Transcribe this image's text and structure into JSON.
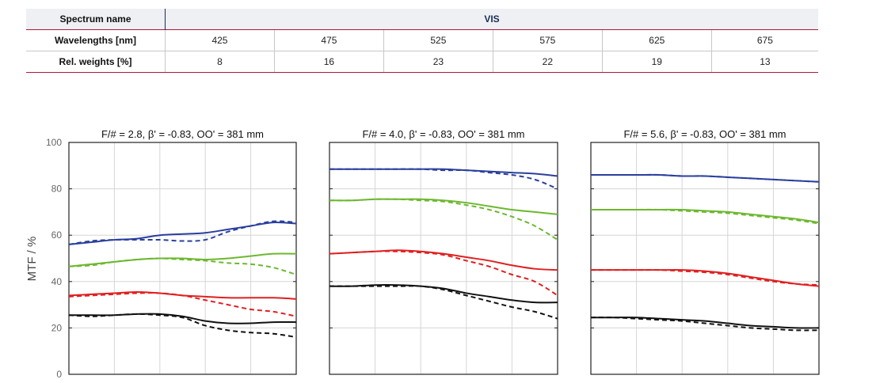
{
  "spectrum_table": {
    "name_label": "Spectrum name",
    "name_value": "VIS",
    "wavelengths_label": "Wavelengths [nm]",
    "wavelengths": [
      "425",
      "475",
      "525",
      "575",
      "625",
      "675"
    ],
    "weights_label": "Rel. weights [%]",
    "weights": [
      "8",
      "16",
      "23",
      "22",
      "19",
      "13"
    ]
  },
  "chart_data": [
    {
      "type": "line",
      "title": "F/# = 2.8, β' = -0.83, OO' = 381 mm",
      "ylabel": "MTF / %",
      "ylim": [
        0,
        100
      ],
      "yticks": [
        "0",
        "20",
        "40",
        "60",
        "80",
        "100"
      ],
      "xlim": [
        0,
        1
      ],
      "grid": true,
      "x": [
        0,
        0.1,
        0.2,
        0.3,
        0.4,
        0.5,
        0.6,
        0.7,
        0.8,
        0.9,
        1
      ],
      "series": [
        {
          "color": "#2a3f9d",
          "dash": false,
          "values": [
            56,
            57,
            58,
            58.5,
            60,
            60.5,
            61,
            62.5,
            64,
            65.5,
            65
          ]
        },
        {
          "color": "#2a3f9d",
          "dash": true,
          "values": [
            56,
            57.5,
            58,
            58,
            58,
            57.5,
            58,
            61.5,
            64,
            66,
            65.5
          ]
        },
        {
          "color": "#6cb82e",
          "dash": false,
          "values": [
            46.5,
            47.5,
            48.5,
            49.5,
            50,
            50,
            49.5,
            50,
            51,
            52,
            52
          ]
        },
        {
          "color": "#6cb82e",
          "dash": true,
          "values": [
            46.5,
            47,
            48.5,
            49.5,
            50,
            49.5,
            49,
            48,
            47.5,
            46,
            43
          ]
        },
        {
          "color": "#e02020",
          "dash": false,
          "values": [
            34,
            34.5,
            35,
            35.5,
            35,
            34,
            33.5,
            33,
            33,
            33,
            32.5
          ]
        },
        {
          "color": "#e02020",
          "dash": true,
          "values": [
            33.5,
            34,
            34.5,
            35,
            35,
            34,
            32,
            30,
            28,
            27,
            25
          ]
        },
        {
          "color": "#111111",
          "dash": false,
          "values": [
            25.5,
            25.5,
            25.5,
            26,
            26,
            25,
            23,
            22,
            22,
            22.5,
            22.5
          ]
        },
        {
          "color": "#111111",
          "dash": true,
          "values": [
            25.5,
            25,
            25.5,
            26,
            25.5,
            24.5,
            21,
            19,
            18,
            17.5,
            16
          ]
        }
      ]
    },
    {
      "type": "line",
      "title": "F/# = 4.0, β' = -0.83, OO' = 381 mm",
      "ylim": [
        0,
        100
      ],
      "xlim": [
        0,
        1
      ],
      "grid": true,
      "x": [
        0,
        0.1,
        0.2,
        0.3,
        0.4,
        0.5,
        0.6,
        0.7,
        0.8,
        0.9,
        1
      ],
      "series": [
        {
          "color": "#2a3f9d",
          "dash": false,
          "values": [
            88.5,
            88.5,
            88.5,
            88.5,
            88.5,
            88.5,
            88,
            87.5,
            87,
            86.5,
            85.5
          ]
        },
        {
          "color": "#2a3f9d",
          "dash": true,
          "values": [
            88.5,
            88.5,
            88.5,
            88.5,
            88.5,
            88,
            88,
            87,
            86,
            84,
            80
          ]
        },
        {
          "color": "#6cb82e",
          "dash": false,
          "values": [
            75,
            75,
            75.5,
            75.5,
            75.5,
            75,
            74,
            72.5,
            71,
            70,
            69
          ]
        },
        {
          "color": "#6cb82e",
          "dash": true,
          "values": [
            75,
            75,
            75.5,
            75.5,
            75,
            74.5,
            73,
            71,
            68,
            64,
            58
          ]
        },
        {
          "color": "#e02020",
          "dash": false,
          "values": [
            52,
            52.5,
            53,
            53.5,
            53,
            52,
            50.5,
            49,
            47,
            45.5,
            45
          ]
        },
        {
          "color": "#e02020",
          "dash": true,
          "values": [
            52,
            52.5,
            53,
            53,
            52.5,
            51.5,
            49,
            46.5,
            43,
            40,
            34
          ]
        },
        {
          "color": "#111111",
          "dash": false,
          "values": [
            38,
            38,
            38.5,
            38.5,
            38,
            37,
            35,
            33.5,
            32,
            31,
            31
          ]
        },
        {
          "color": "#111111",
          "dash": true,
          "values": [
            38,
            38,
            38,
            38,
            38,
            36.5,
            34,
            31.5,
            29,
            27,
            24
          ]
        }
      ]
    },
    {
      "type": "line",
      "title": "F/# = 5.6, β' = -0.83, OO' = 381 mm",
      "ylim": [
        0,
        100
      ],
      "xlim": [
        0,
        1
      ],
      "grid": true,
      "x": [
        0,
        0.1,
        0.2,
        0.3,
        0.4,
        0.5,
        0.6,
        0.7,
        0.8,
        0.9,
        1
      ],
      "series": [
        {
          "color": "#2a3f9d",
          "dash": false,
          "values": [
            86,
            86,
            86,
            86,
            85.5,
            85.5,
            85,
            84.5,
            84,
            83.5,
            83
          ]
        },
        {
          "color": "#2a3f9d",
          "dash": true,
          "values": [
            86,
            86,
            86,
            86,
            85.5,
            85.5,
            85,
            84.5,
            84,
            83.5,
            83
          ]
        },
        {
          "color": "#6cb82e",
          "dash": false,
          "values": [
            71,
            71,
            71,
            71,
            71,
            70.5,
            70,
            69,
            68,
            67,
            65.5
          ]
        },
        {
          "color": "#6cb82e",
          "dash": true,
          "values": [
            71,
            71,
            71,
            71,
            70.5,
            70,
            69.5,
            68.5,
            67.5,
            66.5,
            65
          ]
        },
        {
          "color": "#e02020",
          "dash": false,
          "values": [
            45,
            45,
            45,
            45,
            45,
            44.5,
            43.5,
            42,
            40.5,
            39,
            38
          ]
        },
        {
          "color": "#e02020",
          "dash": true,
          "values": [
            45,
            45,
            45,
            45,
            44.5,
            44,
            43,
            41.5,
            40,
            39,
            38.5
          ]
        },
        {
          "color": "#111111",
          "dash": false,
          "values": [
            24.5,
            24.5,
            24.5,
            24,
            23.5,
            23,
            22,
            21,
            20.5,
            20,
            20
          ]
        },
        {
          "color": "#111111",
          "dash": true,
          "values": [
            24.5,
            24.5,
            24,
            23.5,
            23,
            22,
            21,
            20,
            19.5,
            19,
            19
          ]
        }
      ]
    }
  ]
}
